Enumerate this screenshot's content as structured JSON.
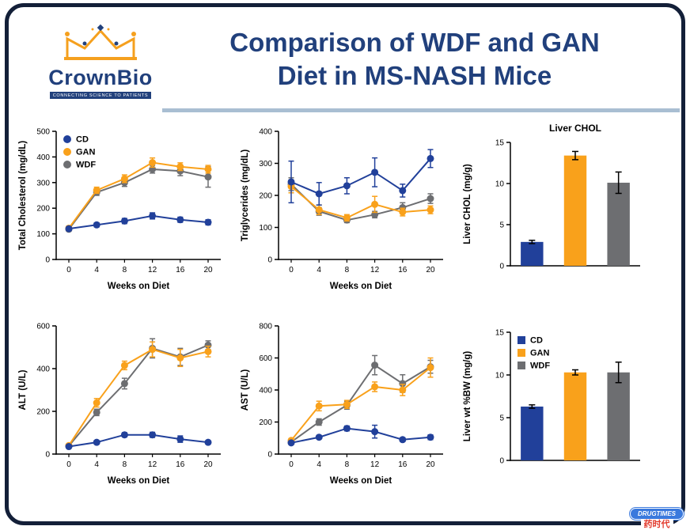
{
  "header": {
    "title_line1": "Comparison of WDF and GAN",
    "title_line2": "Diet in MS-NASH Mice"
  },
  "logo": {
    "name": "CrownBio",
    "tagline": "CONNECTING SCIENCE TO PATIENTS"
  },
  "watermark": {
    "name": "DRUGTIMES",
    "cn": "药时代"
  },
  "colors": {
    "series": {
      "CD": "#21409A",
      "GAN": "#F9A11B",
      "WDF": "#6D6E71"
    },
    "title": "#21407C",
    "divider": "#A9BED2",
    "border": "#131F38"
  },
  "chart_data": [
    {
      "id": "total-cholesterol",
      "type": "line",
      "title": "",
      "xlabel": "Weeks on Diet",
      "ylabel": "Total Cholesterol (mg/dL)",
      "x": [
        0,
        4,
        8,
        12,
        16,
        20
      ],
      "ylim": [
        0,
        500
      ],
      "ytick": 100,
      "legend": {
        "show": true,
        "marker": "circle",
        "entries": [
          "CD",
          "GAN",
          "WDF"
        ]
      },
      "series": [
        {
          "name": "WDF",
          "values": [
            118,
            262,
            300,
            352,
            345,
            322
          ],
          "err": [
            8,
            12,
            15,
            15,
            18,
            40
          ]
        },
        {
          "name": "GAN",
          "values": [
            122,
            270,
            315,
            378,
            362,
            352
          ],
          "err": [
            8,
            12,
            15,
            18,
            15,
            15
          ]
        },
        {
          "name": "CD",
          "values": [
            120,
            135,
            150,
            170,
            155,
            145
          ],
          "err": [
            8,
            8,
            10,
            12,
            10,
            10
          ]
        }
      ]
    },
    {
      "id": "triglycerides",
      "type": "line",
      "title": "",
      "xlabel": "Weeks on Diet",
      "ylabel": "Triglycerides (mg/dL)",
      "x": [
        0,
        4,
        8,
        12,
        16,
        20
      ],
      "ylim": [
        0,
        400
      ],
      "ytick": 100,
      "series": [
        {
          "name": "WDF",
          "values": [
            235,
            150,
            123,
            140,
            162,
            190
          ],
          "err": [
            20,
            12,
            8,
            10,
            15,
            15
          ]
        },
        {
          "name": "GAN",
          "values": [
            228,
            155,
            130,
            172,
            148,
            155
          ],
          "err": [
            20,
            15,
            10,
            25,
            12,
            12
          ]
        },
        {
          "name": "CD",
          "values": [
            242,
            205,
            230,
            272,
            215,
            315
          ],
          "err": [
            65,
            35,
            25,
            45,
            20,
            28
          ]
        }
      ]
    },
    {
      "id": "liver-chol",
      "type": "bar",
      "title": "Liver CHOL",
      "xlabel": "",
      "ylabel": "Liver CHOL (mg/g)",
      "categories": [
        "CD",
        "GAN",
        "WDF"
      ],
      "values": [
        2.9,
        13.4,
        10.1
      ],
      "err": [
        0.2,
        0.5,
        1.3
      ],
      "ylim": [
        0,
        15
      ],
      "ytick": 5
    },
    {
      "id": "alt",
      "type": "line",
      "title": "",
      "xlabel": "Weeks on Diet",
      "ylabel": "ALT (U/L)",
      "x": [
        0,
        4,
        8,
        12,
        16,
        20
      ],
      "ylim": [
        0,
        600
      ],
      "ytick": 200,
      "series": [
        {
          "name": "WDF",
          "values": [
            38,
            195,
            330,
            495,
            455,
            510
          ],
          "err": [
            8,
            15,
            25,
            45,
            40,
            20
          ]
        },
        {
          "name": "GAN",
          "values": [
            40,
            240,
            415,
            490,
            450,
            480
          ],
          "err": [
            8,
            20,
            20,
            35,
            40,
            25
          ]
        },
        {
          "name": "CD",
          "values": [
            35,
            55,
            90,
            90,
            70,
            55
          ],
          "err": [
            5,
            8,
            10,
            12,
            15,
            8
          ]
        }
      ]
    },
    {
      "id": "ast",
      "type": "line",
      "title": "",
      "xlabel": "Weeks on Diet",
      "ylabel": "AST (U/L)",
      "x": [
        0,
        4,
        8,
        12,
        16,
        20
      ],
      "ylim": [
        0,
        800
      ],
      "ytick": 200,
      "series": [
        {
          "name": "WDF",
          "values": [
            75,
            200,
            305,
            555,
            440,
            545
          ],
          "err": [
            8,
            20,
            25,
            60,
            55,
            40
          ]
        },
        {
          "name": "GAN",
          "values": [
            85,
            300,
            310,
            420,
            400,
            540
          ],
          "err": [
            10,
            30,
            25,
            30,
            35,
            60
          ]
        },
        {
          "name": "CD",
          "values": [
            70,
            105,
            160,
            140,
            90,
            105
          ],
          "err": [
            8,
            10,
            15,
            40,
            12,
            15
          ]
        }
      ]
    },
    {
      "id": "liver-wt",
      "type": "bar",
      "title": "",
      "xlabel": "",
      "ylabel": "Liver wt %BW (mg/g)",
      "categories": [
        "CD",
        "GAN",
        "WDF"
      ],
      "values": [
        6.3,
        10.3,
        10.3
      ],
      "err": [
        0.2,
        0.3,
        1.2
      ],
      "ylim": [
        0,
        15
      ],
      "ytick": 5,
      "legend": {
        "show": true,
        "marker": "square",
        "entries": [
          "CD",
          "GAN",
          "WDF"
        ]
      }
    }
  ]
}
